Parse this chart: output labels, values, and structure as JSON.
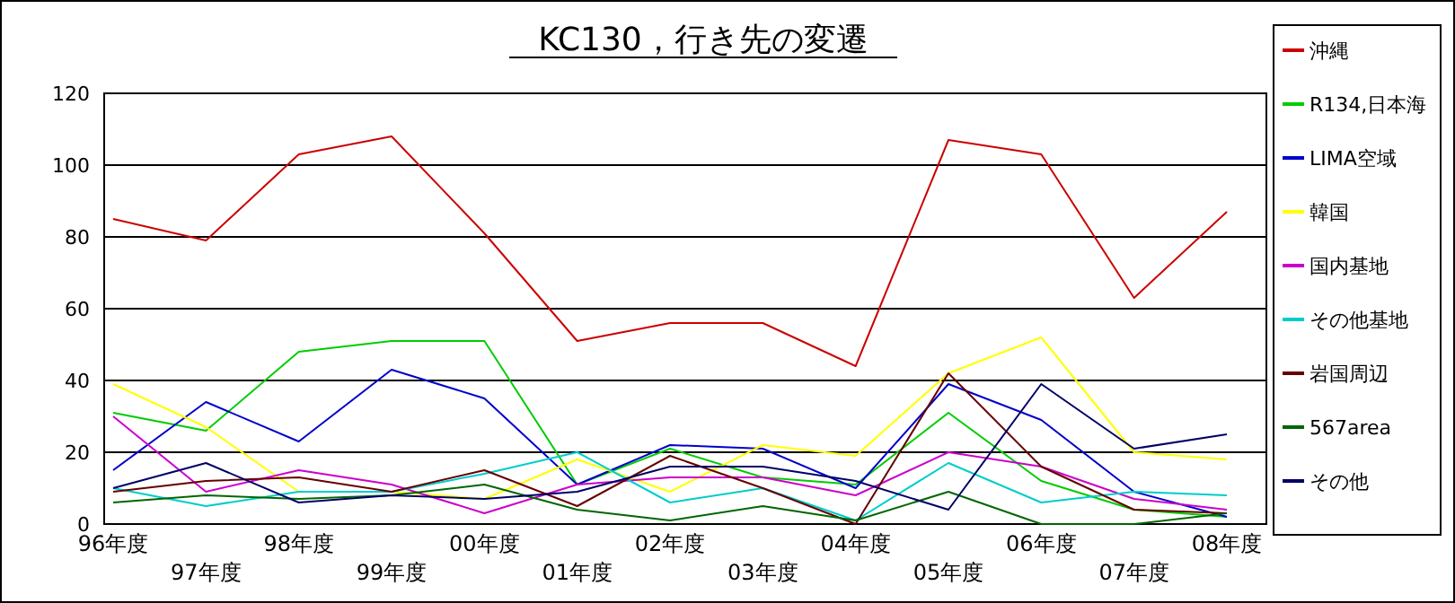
{
  "chart_data": {
    "type": "line",
    "title": "KC130，行き先の変遷",
    "categories": [
      "96年度",
      "97年度",
      "98年度",
      "99年度",
      "00年度",
      "01年度",
      "02年度",
      "03年度",
      "04年度",
      "05年度",
      "06年度",
      "07年度",
      "08年度"
    ],
    "ylim": [
      0,
      120
    ],
    "yticks": [
      0,
      20,
      40,
      60,
      80,
      100,
      120
    ],
    "grid": "y",
    "legend": "right",
    "marker": "none",
    "series": [
      {
        "name": "沖縄",
        "color": "#cc0000",
        "values": [
          85,
          79,
          103,
          108,
          81,
          51,
          56,
          56,
          44,
          107,
          103,
          63,
          87
        ]
      },
      {
        "name": "R134,日本海",
        "color": "#00cc00",
        "values": [
          31,
          26,
          48,
          51,
          51,
          11,
          21,
          13,
          11,
          31,
          12,
          4,
          2
        ]
      },
      {
        "name": "LIMA空域",
        "color": "#0000cc",
        "values": [
          15,
          34,
          23,
          43,
          35,
          11,
          22,
          21,
          10,
          39,
          29,
          9,
          2
        ]
      },
      {
        "name": "韓国",
        "color": "#ffff00",
        "values": [
          39,
          27,
          9,
          9,
          7,
          18,
          9,
          22,
          19,
          42,
          52,
          20,
          18
        ]
      },
      {
        "name": "国内基地",
        "color": "#cc00cc",
        "values": [
          30,
          9,
          15,
          11,
          3,
          11,
          13,
          13,
          8,
          20,
          16,
          7,
          4
        ]
      },
      {
        "name": "その他基地",
        "color": "#00cccc",
        "values": [
          10,
          5,
          9,
          9,
          14,
          20,
          6,
          10,
          1,
          17,
          6,
          9,
          8
        ]
      },
      {
        "name": "岩国周辺",
        "color": "#660000",
        "values": [
          9,
          12,
          13,
          9,
          15,
          5,
          19,
          10,
          0,
          42,
          16,
          4,
          3
        ]
      },
      {
        "name": "567area",
        "color": "#006600",
        "values": [
          6,
          8,
          7,
          8,
          11,
          4,
          1,
          5,
          1,
          9,
          0,
          0,
          3
        ]
      },
      {
        "name": "その他",
        "color": "#000066",
        "values": [
          10,
          17,
          6,
          8,
          7,
          9,
          16,
          16,
          12,
          4,
          39,
          21,
          25
        ]
      }
    ]
  }
}
